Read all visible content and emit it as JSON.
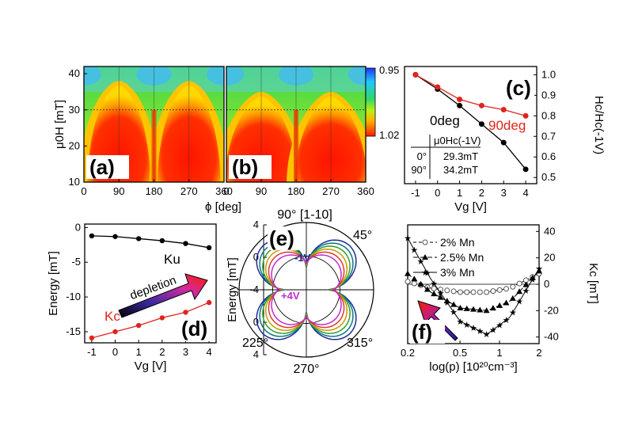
{
  "chart_data": [
    {
      "id": "a",
      "type": "heatmap",
      "panel_label": "(a)",
      "xlabel": "ϕ [deg]",
      "ylabel": "μ0H [mT]",
      "xlim": [
        0,
        360
      ],
      "ylim": [
        10,
        42
      ],
      "xticks": [
        "0",
        "90",
        "180",
        "270",
        "360"
      ],
      "yticks": [
        "10",
        "20",
        "30",
        "40"
      ],
      "colorbar": {
        "top": "0.95",
        "bottom": "1.02"
      },
      "lobe_centers_deg": [
        90,
        270
      ],
      "lobe_apex_mT": 38,
      "crosshair_mT": 30
    },
    {
      "id": "b",
      "type": "heatmap",
      "panel_label": "(b)",
      "xlim": [
        0,
        360
      ],
      "ylim": [
        10,
        42
      ],
      "xticks": [
        "0",
        "90",
        "180",
        "270",
        "360"
      ],
      "lobe_centers_deg": [
        90,
        270
      ],
      "lobe_apex_mT": 35,
      "crosshair_mT": 30
    },
    {
      "id": "c",
      "type": "line",
      "panel_label": "(c)",
      "xlabel": "Vg [V]",
      "ylabel": "Hc/Hc(-1V)",
      "xlim": [
        -1.5,
        4.5
      ],
      "ylim": [
        0.47,
        1.04
      ],
      "xticks": [
        -1,
        0,
        1,
        2,
        3,
        4
      ],
      "yticks": [
        0.5,
        0.6,
        0.7,
        0.8,
        0.9,
        1.0
      ],
      "x": [
        -1,
        0,
        1,
        2,
        3,
        4
      ],
      "series": [
        {
          "name": "0deg",
          "color": "#000000",
          "values": [
            1.0,
            0.93,
            0.85,
            0.76,
            0.67,
            0.54
          ]
        },
        {
          "name": "90deg",
          "color": "#e0241b",
          "values": [
            1.0,
            0.94,
            0.88,
            0.85,
            0.83,
            0.8
          ]
        }
      ],
      "table": {
        "header": "μ0Hc(-1V)",
        "rows": [
          [
            "0°",
            "29.3mT"
          ],
          [
            "90°",
            "34.2mT"
          ]
        ]
      }
    },
    {
      "id": "d",
      "type": "line",
      "panel_label": "(d)",
      "xlabel": "Vg [V]",
      "ylabel": "Energy [mT]",
      "xlim": [
        -1.3,
        4.3
      ],
      "ylim": [
        -16.6,
        0.5
      ],
      "xticks": [
        -1,
        0,
        1,
        2,
        3,
        4
      ],
      "yticks": [
        0,
        -5,
        -10,
        -15
      ],
      "x": [
        -1,
        0,
        1,
        2,
        3,
        4
      ],
      "series": [
        {
          "name": "Ku",
          "color": "#000000",
          "values": [
            -1.2,
            -1.3,
            -1.6,
            -1.9,
            -2.3,
            -2.9
          ]
        },
        {
          "name": "Kc",
          "color": "#e0241b",
          "values": [
            -15.9,
            -15.0,
            -14.1,
            -13.0,
            -12.2,
            -10.8
          ]
        }
      ],
      "annotation": "depletion"
    },
    {
      "id": "e",
      "type": "polar",
      "panel_label": "(e)",
      "ylabel": "Energy [mT]",
      "rlim": [
        -4,
        4
      ],
      "yticks": [
        "4",
        "0",
        "-4",
        "0",
        "4"
      ],
      "angle_labels": [
        "90° [1-10]",
        "45°",
        "225°",
        "315°",
        "270°"
      ],
      "annotations": [
        "-1V",
        "+4V"
      ],
      "curve_colors": [
        "#1f2a9c",
        "#0b7a7a",
        "#2e9e2e",
        "#c99a00",
        "#e03b2a",
        "#c02ad0"
      ]
    },
    {
      "id": "f",
      "type": "line",
      "panel_label": "(f)",
      "xlabel": "log(p)  [10²⁰cm⁻³]",
      "ylabel": "Kc   [mT]",
      "xscale": "log",
      "xlim": [
        0.2,
        2
      ],
      "ylim": [
        -45,
        45
      ],
      "xticks": [
        "0.2",
        "0.5",
        "1",
        "2"
      ],
      "yticks": [
        40,
        20,
        0,
        -20,
        -40
      ],
      "series": [
        {
          "name": "2% Mn",
          "marker": "circle-open",
          "x": [
            0.2,
            0.3,
            0.5,
            0.8,
            1.2,
            2.0
          ],
          "values": [
            2,
            -3,
            -6,
            -6,
            -3,
            8
          ]
        },
        {
          "name": "2.5% Mn",
          "marker": "triangle",
          "x": [
            0.2,
            0.3,
            0.5,
            0.8,
            1.2,
            2.0
          ],
          "values": [
            8,
            -6,
            -18,
            -20,
            -13,
            10
          ]
        },
        {
          "name": "3% Mn",
          "marker": "star",
          "x": [
            0.2,
            0.3,
            0.5,
            0.8,
            1.2,
            2.0
          ],
          "values": [
            35,
            4,
            -28,
            -38,
            -25,
            12
          ]
        }
      ]
    }
  ]
}
